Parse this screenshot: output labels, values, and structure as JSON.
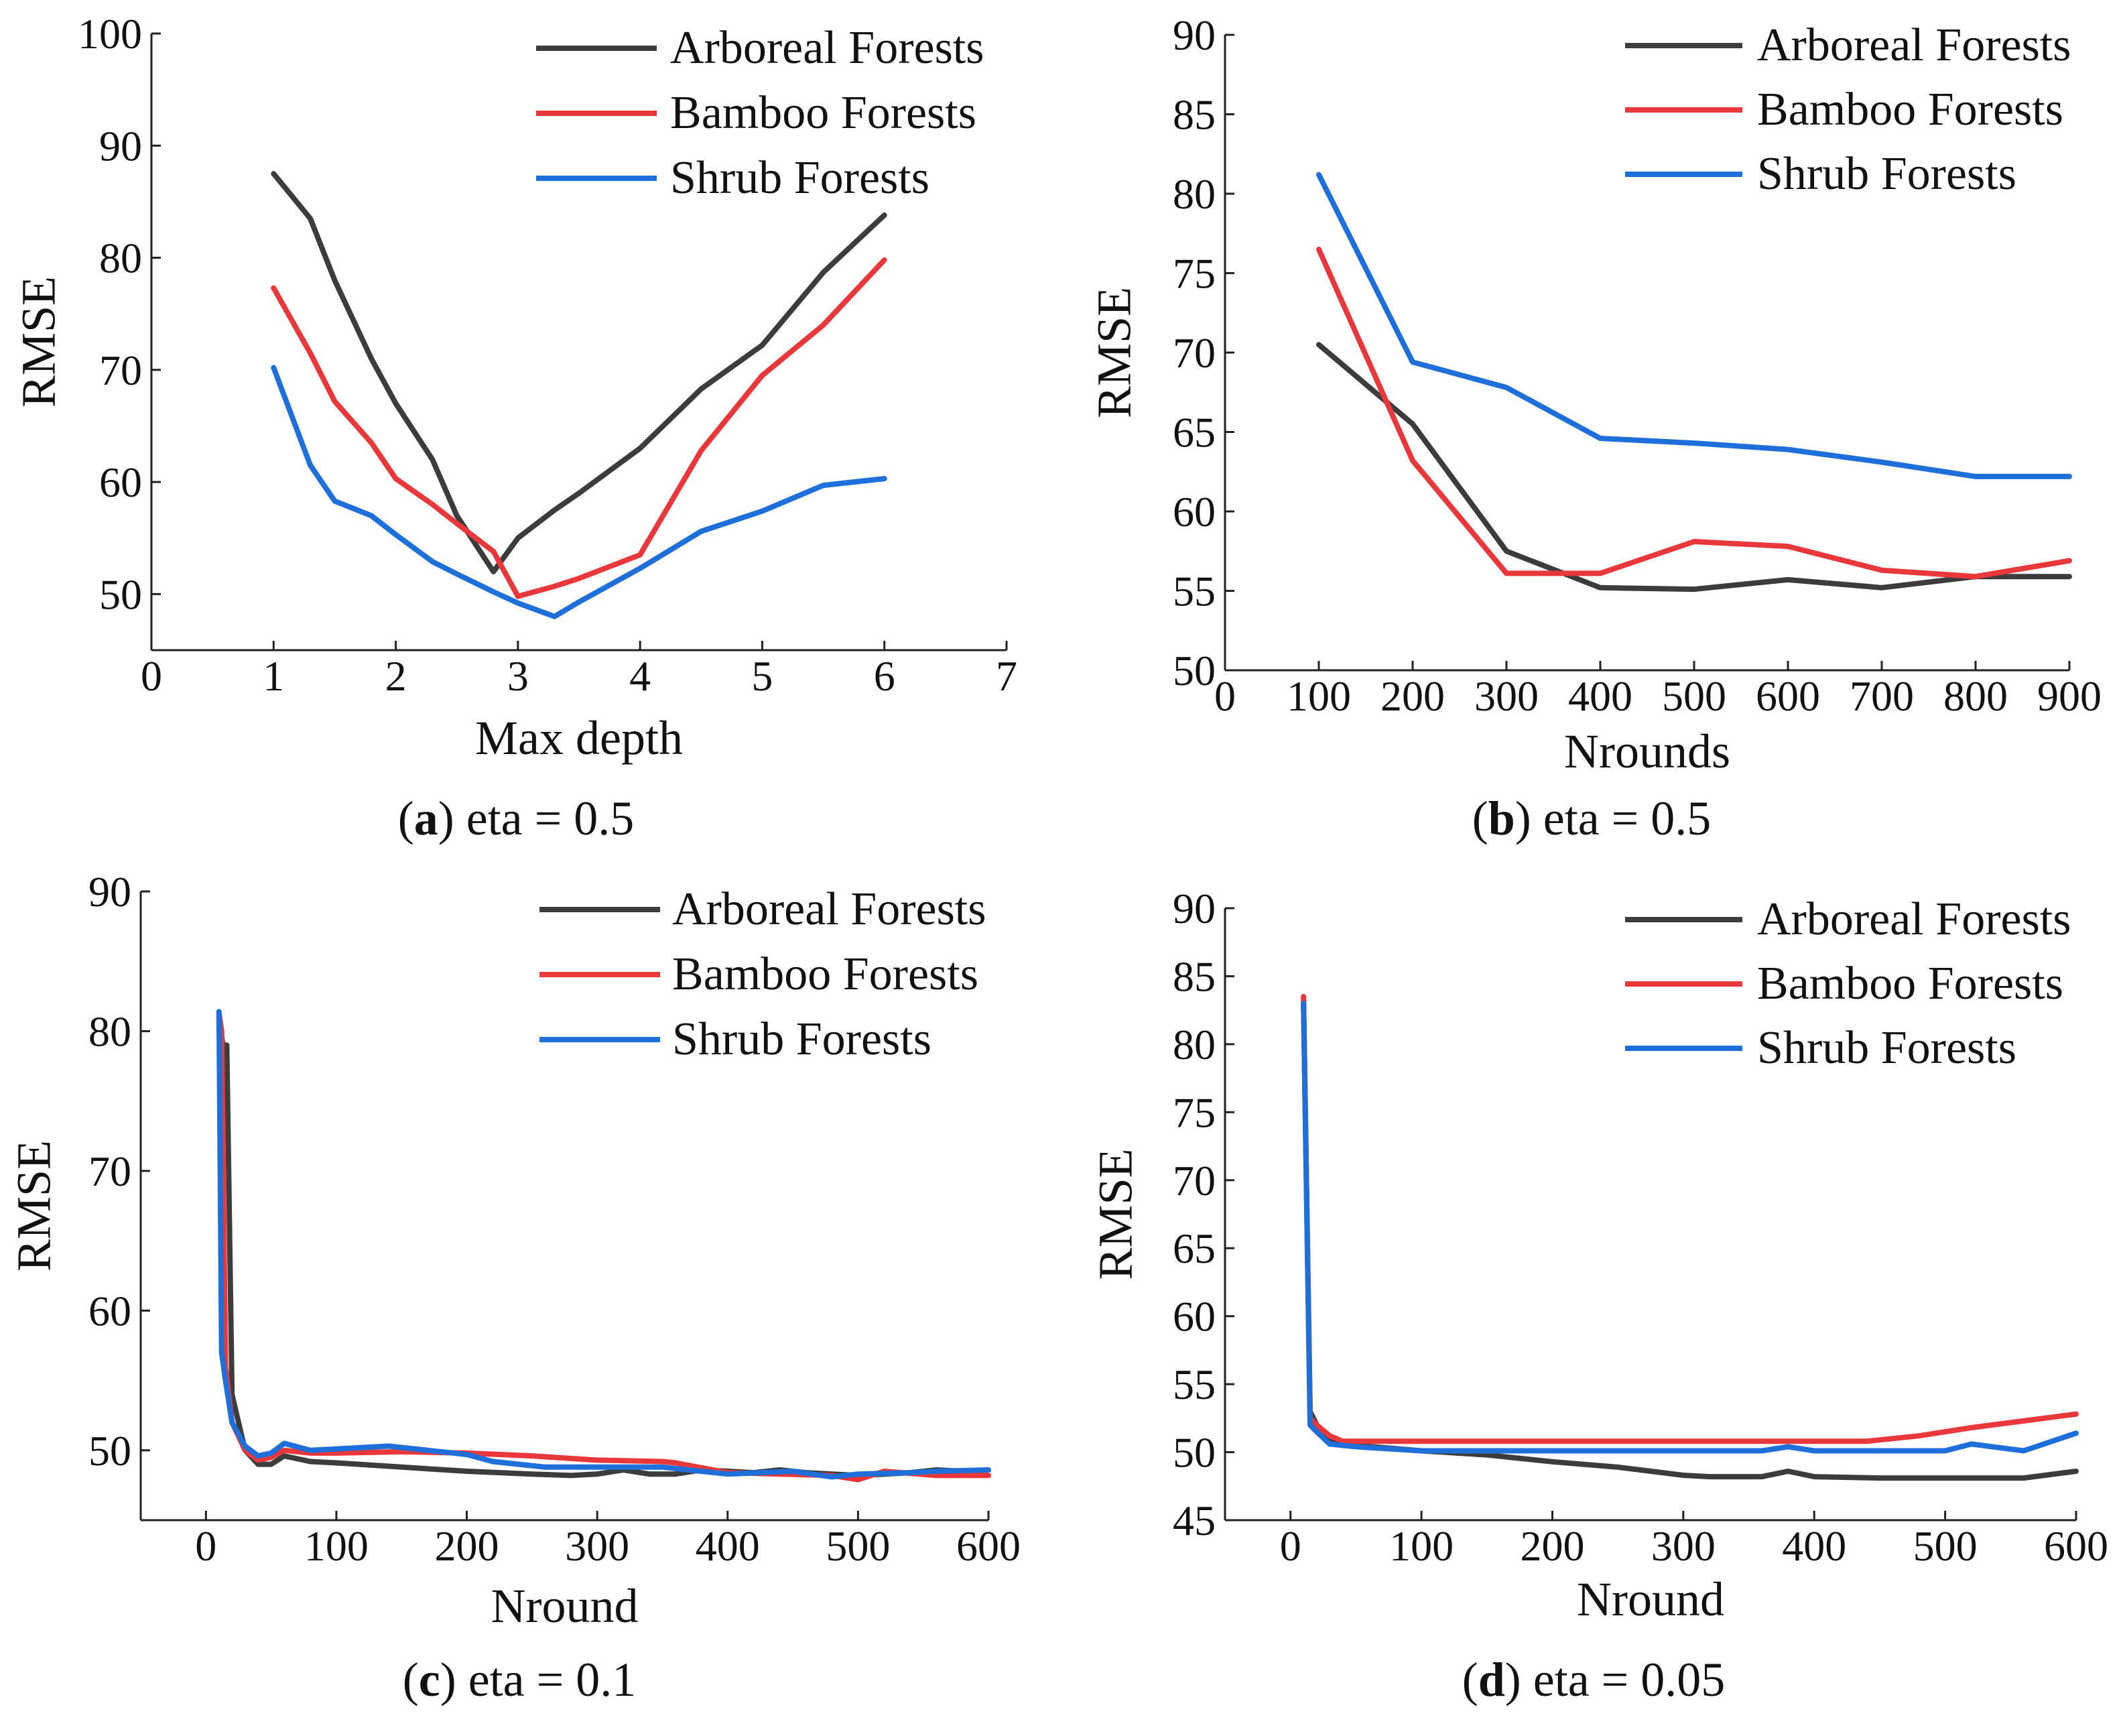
{
  "colors": {
    "arboreal": "#3c3c3c",
    "bamboo": "#e8383c",
    "shrub": "#1e6fd9",
    "axis": "#222222"
  },
  "chart_data": [
    {
      "id": "a",
      "type": "line",
      "caption_label": "(a)",
      "caption_text": " eta = 0.5",
      "xlabel": "Max depth",
      "ylabel": "RMSE",
      "xlim": [
        0,
        7
      ],
      "ylim": [
        45,
        100
      ],
      "xticks": [
        0,
        1,
        2,
        3,
        4,
        5,
        6,
        7
      ],
      "xtick_labels": [
        "0",
        "1",
        "2",
        "3",
        "4",
        "5",
        "6",
        "7"
      ],
      "yticks": [
        50,
        60,
        70,
        80,
        90,
        100
      ],
      "ytick_labels": [
        "50",
        "60",
        "70",
        "80",
        "90",
        "100"
      ],
      "legend_position": "top-right",
      "series": [
        {
          "name": "Arboreal Forests",
          "color_key": "arboreal",
          "x": [
            1,
            1.3,
            1.5,
            1.8,
            2,
            2.3,
            2.5,
            2.8,
            3,
            3.3,
            3.5,
            4,
            4.5,
            5,
            5.5,
            6
          ],
          "y": [
            87.5,
            83.5,
            78,
            71,
            67,
            62,
            57,
            52,
            55,
            57.5,
            59,
            63,
            68.3,
            72.2,
            78.7,
            83.8
          ]
        },
        {
          "name": "Bamboo Forests",
          "color_key": "bamboo",
          "x": [
            1,
            1.3,
            1.5,
            1.8,
            2,
            2.3,
            2.5,
            2.8,
            3,
            3.3,
            3.5,
            4,
            4.5,
            5,
            5.5,
            6
          ],
          "y": [
            77.3,
            71.5,
            67.2,
            63.5,
            60.3,
            58,
            56.3,
            53.8,
            49.8,
            50.7,
            51.4,
            53.5,
            62.8,
            69.5,
            74,
            79.8
          ]
        },
        {
          "name": "Shrub  Forests",
          "color_key": "shrub",
          "x": [
            1,
            1.3,
            1.5,
            1.8,
            2,
            2.3,
            2.5,
            2.8,
            3,
            3.3,
            3.5,
            4,
            4.5,
            5,
            5.5,
            6
          ],
          "y": [
            70.2,
            61.5,
            58.3,
            57,
            55.3,
            52.9,
            51.8,
            50.2,
            49.2,
            48,
            49.3,
            52.3,
            55.6,
            57.4,
            59.7,
            60.3
          ]
        }
      ]
    },
    {
      "id": "b",
      "type": "line",
      "caption_label": "(b)",
      "caption_text": " eta = 0.5",
      "xlabel": "Nrounds",
      "ylabel": "RMSE",
      "xlim": [
        0,
        900
      ],
      "ylim": [
        50,
        90
      ],
      "xticks": [
        0,
        100,
        200,
        300,
        400,
        500,
        600,
        700,
        800,
        900
      ],
      "xtick_labels": [
        "0",
        "100",
        "200",
        "300",
        "400",
        "500",
        "600",
        "700",
        "800",
        "900"
      ],
      "yticks": [
        50,
        55,
        60,
        65,
        70,
        75,
        80,
        85,
        90
      ],
      "ytick_labels": [
        "50",
        "55",
        "60",
        "65",
        "70",
        "75",
        "80",
        "85",
        "90"
      ],
      "legend_position": "top-right",
      "series": [
        {
          "name": "Arboreal Forests",
          "color_key": "arboreal",
          "x": [
            100,
            200,
            300,
            400,
            500,
            600,
            700,
            800,
            900
          ],
          "y": [
            70.5,
            65.5,
            57.5,
            55.2,
            55.1,
            55.7,
            55.2,
            55.9,
            55.9
          ]
        },
        {
          "name": "Bamboo Forests",
          "color_key": "bamboo",
          "x": [
            100,
            200,
            300,
            400,
            500,
            600,
            700,
            800,
            900
          ],
          "y": [
            76.5,
            63.2,
            56.1,
            56.1,
            58.1,
            57.8,
            56.3,
            55.9,
            56.9
          ]
        },
        {
          "name": "Shrub Forests",
          "color_key": "shrub",
          "x": [
            100,
            200,
            300,
            400,
            500,
            600,
            700,
            800,
            900
          ],
          "y": [
            81.2,
            69.4,
            67.8,
            64.6,
            64.3,
            63.9,
            63.1,
            62.2,
            62.2
          ]
        }
      ]
    },
    {
      "id": "c",
      "type": "line",
      "caption_label": "(c)",
      "caption_text": " eta = 0.1",
      "xlabel": "Nround",
      "ylabel": "RMSE",
      "xlim": [
        -50,
        600
      ],
      "ylim": [
        45,
        90
      ],
      "xticks": [
        0,
        100,
        200,
        300,
        400,
        500,
        600
      ],
      "xtick_labels": [
        "0",
        "100",
        "200",
        "300",
        "400",
        "500",
        "600"
      ],
      "yticks": [
        50,
        60,
        70,
        80,
        90
      ],
      "ytick_labels": [
        "50",
        "60",
        "70",
        "80",
        "90"
      ],
      "legend_position": "top-right",
      "series": [
        {
          "name": "Arboreal Forests",
          "color_key": "arboreal",
          "x": [
            10,
            13,
            16,
            20,
            30,
            40,
            50,
            60,
            80,
            100,
            150,
            200,
            250,
            280,
            300,
            320,
            340,
            360,
            380,
            400,
            420,
            440,
            460,
            480,
            500,
            520,
            540,
            560,
            580,
            600
          ],
          "y": [
            81,
            79,
            79,
            54,
            50,
            49,
            49,
            49.6,
            49.2,
            49.1,
            48.8,
            48.5,
            48.3,
            48.2,
            48.3,
            48.6,
            48.3,
            48.3,
            48.6,
            48.5,
            48.4,
            48.6,
            48.4,
            48.3,
            48.2,
            48.3,
            48.4,
            48.6,
            48.5,
            48.6
          ]
        },
        {
          "name": "Bamboo Forests",
          "color_key": "bamboo",
          "x": [
            10,
            12,
            15,
            20,
            30,
            40,
            50,
            60,
            80,
            100,
            150,
            200,
            250,
            300,
            350,
            360,
            400,
            440,
            480,
            500,
            520,
            560,
            600
          ],
          "y": [
            81.3,
            80,
            56,
            52,
            50,
            49.3,
            49.5,
            50,
            49.8,
            49.8,
            49.9,
            49.8,
            49.6,
            49.3,
            49.2,
            49.1,
            48.4,
            48.3,
            48.2,
            47.9,
            48.5,
            48.2,
            48.2
          ]
        },
        {
          "name": "Shrub Forests",
          "color_key": "shrub",
          "x": [
            10,
            12,
            15,
            20,
            30,
            40,
            50,
            60,
            80,
            100,
            140,
            170,
            200,
            220,
            260,
            300,
            350,
            370,
            400,
            450,
            480,
            500,
            540,
            560,
            600
          ],
          "y": [
            81.4,
            57,
            55,
            52,
            50.3,
            49.6,
            49.8,
            50.5,
            50,
            50.1,
            50.3,
            50,
            49.7,
            49.2,
            48.8,
            48.8,
            48.8,
            48.6,
            48.3,
            48.5,
            48.1,
            48.3,
            48.4,
            48.5,
            48.6
          ]
        }
      ]
    },
    {
      "id": "d",
      "type": "line",
      "caption_label": "(d)",
      "caption_text": " eta = 0.05",
      "xlabel": "Nround",
      "ylabel": "RMSE",
      "xlim": [
        -50,
        600
      ],
      "ylim": [
        45,
        90
      ],
      "xticks": [
        0,
        100,
        200,
        300,
        400,
        500,
        600
      ],
      "xtick_labels": [
        "0",
        "100",
        "200",
        "300",
        "400",
        "500",
        "600"
      ],
      "yticks": [
        45,
        50,
        55,
        60,
        65,
        70,
        75,
        80,
        85,
        90
      ],
      "ytick_labels": [
        "45",
        "50",
        "55",
        "60",
        "65",
        "70",
        "75",
        "80",
        "85",
        "90"
      ],
      "legend_position": "top-right",
      "series": [
        {
          "name": "Arboreal Forests",
          "color_key": "arboreal",
          "x": [
            10,
            15,
            20,
            30,
            50,
            100,
            150,
            200,
            250,
            300,
            320,
            360,
            380,
            400,
            450,
            500,
            560,
            600
          ],
          "y": [
            83,
            53,
            52,
            51,
            50.5,
            50.1,
            49.8,
            49.3,
            48.9,
            48.3,
            48.2,
            48.2,
            48.6,
            48.2,
            48.1,
            48.1,
            48.1,
            48.6
          ]
        },
        {
          "name": "Bamboo Forests",
          "color_key": "bamboo",
          "x": [
            10,
            15,
            20,
            30,
            40,
            100,
            200,
            300,
            360,
            400,
            440,
            480,
            520,
            560,
            600
          ],
          "y": [
            83.5,
            52.5,
            52,
            51.2,
            50.8,
            50.8,
            50.8,
            50.8,
            50.8,
            50.8,
            50.8,
            51.2,
            51.8,
            52.3,
            52.8
          ]
        },
        {
          "name": "Shrub Forests",
          "color_key": "shrub",
          "x": [
            10,
            15,
            20,
            30,
            50,
            100,
            200,
            300,
            360,
            380,
            400,
            450,
            500,
            520,
            560,
            600
          ],
          "y": [
            83,
            52,
            51.5,
            50.6,
            50.4,
            50.1,
            50.1,
            50.1,
            50.1,
            50.4,
            50.1,
            50.1,
            50.1,
            50.6,
            50.1,
            51.4
          ]
        }
      ]
    }
  ]
}
